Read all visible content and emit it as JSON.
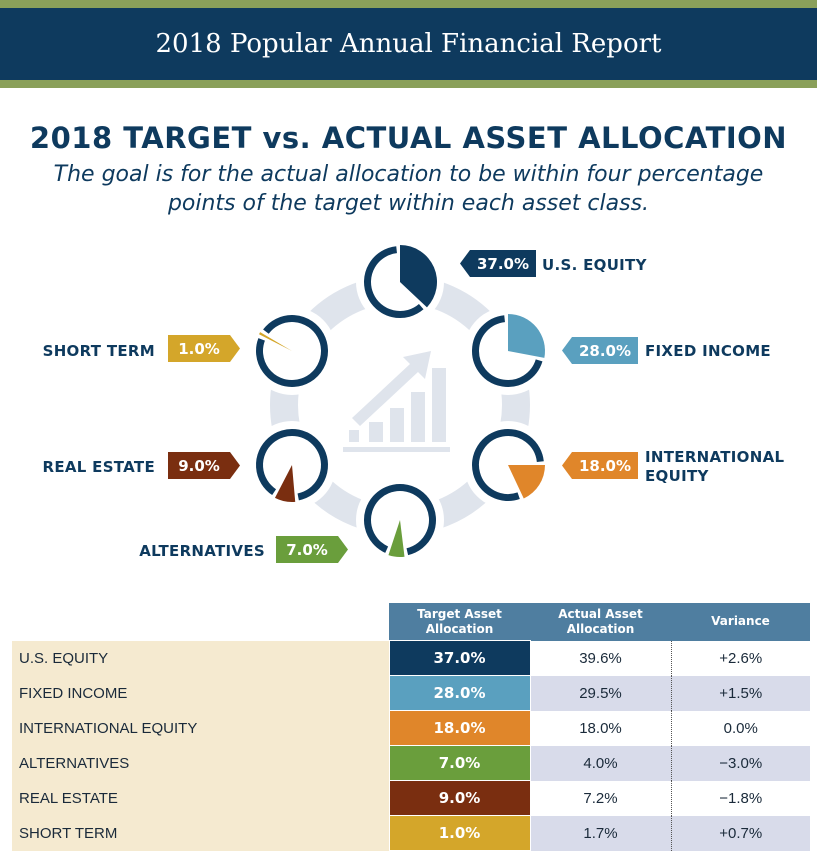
{
  "report_title": "2018 Popular Annual Financial Report",
  "heading": "2018 TARGET vs. ACTUAL ASSET ALLOCATION",
  "subtitle": "The goal is for the actual allocation to be within four percentage points of the target within each asset class.",
  "colors": {
    "navy": "#0e3a5e",
    "green_stripe": "#8aa05a",
    "us_equity": "#0e3a5e",
    "fixed_income": "#5aa0bf",
    "international_equity": "#e0862a",
    "alternatives": "#6a9e3c",
    "real_estate": "#7a2e10",
    "short_term": "#d4a62a",
    "table_header": "#4f7ea0",
    "row_label_bg": "#f5ead0",
    "row_shade": "#d8dbea"
  },
  "chart_data": {
    "type": "pie",
    "categories": [
      "U.S. EQUITY",
      "FIXED INCOME",
      "INTERNATIONAL EQUITY",
      "ALTERNATIVES",
      "REAL ESTATE",
      "SHORT TERM"
    ],
    "values": [
      37.0,
      28.0,
      18.0,
      7.0,
      9.0,
      1.0
    ],
    "labels": [
      "37.0%",
      "28.0%",
      "18.0%",
      "7.0%",
      "9.0%",
      "1.0%"
    ],
    "unit": "%"
  },
  "table": {
    "headers": {
      "target": [
        "Target Asset",
        "Allocation"
      ],
      "actual": [
        "Actual Asset",
        "Allocation"
      ],
      "variance": "Variance"
    },
    "rows": [
      {
        "name": "U.S. EQUITY",
        "target": "37.0%",
        "actual": "39.6%",
        "variance": "+2.6%"
      },
      {
        "name": "FIXED INCOME",
        "target": "28.0%",
        "actual": "29.5%",
        "variance": "+1.5%"
      },
      {
        "name": "INTERNATIONAL EQUITY",
        "target": "18.0%",
        "actual": "18.0%",
        "variance": "0.0%"
      },
      {
        "name": "ALTERNATIVES",
        "target": "7.0%",
        "actual": "4.0%",
        "variance": "−3.0%"
      },
      {
        "name": "REAL ESTATE",
        "target": "9.0%",
        "actual": "7.2%",
        "variance": "−1.8%"
      },
      {
        "name": "SHORT TERM",
        "target": "1.0%",
        "actual": "1.7%",
        "variance": "+0.7%"
      }
    ]
  },
  "icons": [
    "growth-chart-icon"
  ]
}
